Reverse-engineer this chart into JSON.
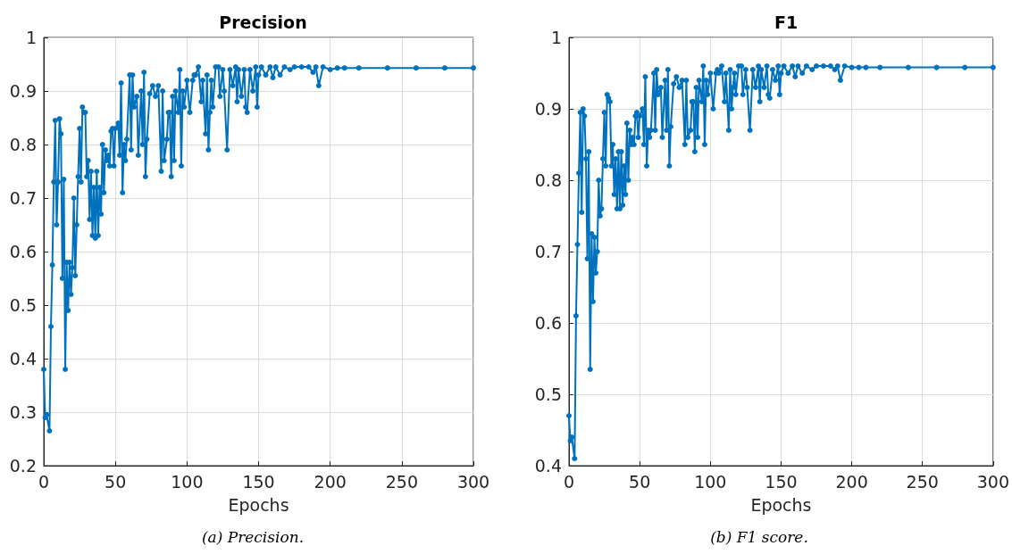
{
  "chart_data": [
    {
      "type": "line",
      "title": "Precision",
      "xlabel": "Epochs",
      "annotations": [
        "(a) Precision."
      ],
      "grid": true,
      "marker": "circle",
      "line_style": "solid",
      "xlim": [
        0,
        300
      ],
      "xticks": [
        0,
        50,
        100,
        150,
        200,
        250,
        300
      ],
      "ylim": [
        0.2,
        1
      ],
      "yticks": [
        0.2,
        0.3,
        0.4,
        0.5,
        0.6,
        0.7,
        0.8,
        0.9,
        1
      ],
      "series": [
        {
          "color": "#0072bd",
          "x": [
            0,
            1,
            2,
            4,
            5,
            6,
            7,
            8,
            9,
            10,
            11,
            12,
            13,
            14,
            15,
            16,
            17,
            18,
            19,
            20,
            21,
            22,
            23,
            24,
            25,
            26,
            27,
            28,
            29,
            30,
            31,
            32,
            33,
            34,
            35,
            36,
            37,
            38,
            39,
            40,
            41,
            42,
            43,
            44,
            45,
            46,
            47,
            48,
            49,
            50,
            52,
            53,
            54,
            55,
            56,
            57,
            58,
            60,
            61,
            62,
            63,
            65,
            66,
            68,
            69,
            70,
            71,
            72,
            74,
            76,
            78,
            80,
            82,
            83,
            84,
            86,
            87,
            88,
            89,
            90,
            91,
            92,
            94,
            95,
            96,
            97,
            98,
            100,
            102,
            104,
            105,
            106,
            108,
            110,
            111,
            113,
            114,
            115,
            116,
            117,
            118,
            120,
            122,
            123,
            125,
            126,
            128,
            130,
            132,
            134,
            135,
            136,
            138,
            140,
            141,
            142,
            144,
            146,
            148,
            149,
            150,
            152,
            155,
            158,
            160,
            162,
            165,
            168,
            172,
            175,
            180,
            185,
            188,
            190,
            192,
            195,
            200,
            205,
            210,
            220,
            240,
            260,
            280,
            300
          ],
          "values": [
            0.38,
            0.29,
            0.295,
            0.265,
            0.46,
            0.575,
            0.73,
            0.845,
            0.65,
            0.73,
            0.848,
            0.82,
            0.55,
            0.735,
            0.38,
            0.58,
            0.49,
            0.58,
            0.52,
            0.57,
            0.7,
            0.555,
            0.65,
            0.74,
            0.83,
            0.73,
            0.87,
            0.86,
            0.86,
            0.74,
            0.77,
            0.66,
            0.75,
            0.63,
            0.72,
            0.625,
            0.75,
            0.63,
            0.72,
            0.67,
            0.8,
            0.71,
            0.79,
            0.77,
            0.78,
            0.76,
            0.825,
            0.83,
            0.76,
            0.83,
            0.84,
            0.78,
            0.915,
            0.71,
            0.8,
            0.77,
            0.81,
            0.93,
            0.79,
            0.93,
            0.87,
            0.89,
            0.78,
            0.9,
            0.8,
            0.935,
            0.74,
            0.81,
            0.895,
            0.91,
            0.89,
            0.91,
            0.75,
            0.9,
            0.77,
            0.81,
            0.86,
            0.86,
            0.74,
            0.89,
            0.77,
            0.9,
            0.86,
            0.94,
            0.76,
            0.9,
            0.87,
            0.92,
            0.86,
            0.92,
            0.93,
            0.93,
            0.945,
            0.88,
            0.92,
            0.82,
            0.93,
            0.79,
            0.86,
            0.92,
            0.87,
            0.945,
            0.945,
            0.89,
            0.94,
            0.9,
            0.79,
            0.94,
            0.91,
            0.945,
            0.88,
            0.94,
            0.89,
            0.94,
            0.87,
            0.86,
            0.94,
            0.9,
            0.945,
            0.87,
            0.93,
            0.945,
            0.93,
            0.945,
            0.925,
            0.945,
            0.93,
            0.945,
            0.94,
            0.945,
            0.945,
            0.945,
            0.935,
            0.945,
            0.91,
            0.945,
            0.94,
            0.943,
            0.943,
            0.943,
            0.943,
            0.943,
            0.943,
            0.943
          ]
        }
      ]
    },
    {
      "type": "line",
      "title": "F1",
      "xlabel": "Epochs",
      "annotations": [
        "(b) F1 score."
      ],
      "grid": true,
      "marker": "circle",
      "line_style": "solid",
      "xlim": [
        0,
        300
      ],
      "xticks": [
        0,
        50,
        100,
        150,
        200,
        250,
        300
      ],
      "ylim": [
        0.4,
        1
      ],
      "yticks": [
        0.4,
        0.5,
        0.6,
        0.7,
        0.8,
        0.9,
        1
      ],
      "series": [
        {
          "color": "#0072bd",
          "x": [
            0,
            1,
            2,
            4,
            5,
            6,
            7,
            8,
            9,
            10,
            11,
            12,
            13,
            14,
            15,
            16,
            17,
            18,
            19,
            20,
            21,
            22,
            23,
            24,
            25,
            26,
            27,
            28,
            29,
            30,
            31,
            32,
            33,
            34,
            35,
            36,
            37,
            38,
            39,
            40,
            41,
            42,
            43,
            44,
            45,
            46,
            47,
            48,
            49,
            50,
            52,
            53,
            54,
            55,
            56,
            57,
            58,
            60,
            61,
            62,
            63,
            65,
            66,
            68,
            69,
            70,
            71,
            72,
            74,
            76,
            78,
            80,
            82,
            83,
            84,
            86,
            87,
            88,
            89,
            90,
            91,
            92,
            94,
            95,
            96,
            97,
            98,
            100,
            102,
            104,
            105,
            106,
            108,
            110,
            111,
            113,
            114,
            115,
            116,
            117,
            118,
            120,
            122,
            123,
            125,
            126,
            128,
            130,
            132,
            134,
            135,
            136,
            138,
            140,
            141,
            142,
            144,
            146,
            148,
            149,
            150,
            152,
            155,
            158,
            160,
            162,
            165,
            168,
            172,
            175,
            180,
            185,
            188,
            190,
            192,
            195,
            200,
            205,
            210,
            220,
            240,
            260,
            280,
            300
          ],
          "values": [
            0.47,
            0.435,
            0.44,
            0.41,
            0.61,
            0.71,
            0.81,
            0.895,
            0.755,
            0.9,
            0.89,
            0.83,
            0.69,
            0.84,
            0.535,
            0.725,
            0.63,
            0.72,
            0.67,
            0.7,
            0.8,
            0.75,
            0.76,
            0.83,
            0.895,
            0.82,
            0.92,
            0.915,
            0.91,
            0.82,
            0.85,
            0.78,
            0.83,
            0.76,
            0.84,
            0.76,
            0.84,
            0.765,
            0.82,
            0.78,
            0.88,
            0.8,
            0.87,
            0.85,
            0.86,
            0.85,
            0.89,
            0.895,
            0.86,
            0.89,
            0.9,
            0.85,
            0.945,
            0.82,
            0.87,
            0.86,
            0.87,
            0.95,
            0.87,
            0.955,
            0.92,
            0.93,
            0.86,
            0.94,
            0.87,
            0.955,
            0.82,
            0.875,
            0.935,
            0.945,
            0.93,
            0.94,
            0.85,
            0.94,
            0.86,
            0.87,
            0.91,
            0.91,
            0.84,
            0.93,
            0.86,
            0.94,
            0.91,
            0.96,
            0.85,
            0.94,
            0.92,
            0.95,
            0.9,
            0.95,
            0.955,
            0.95,
            0.96,
            0.91,
            0.95,
            0.87,
            0.955,
            0.9,
            0.93,
            0.95,
            0.92,
            0.96,
            0.96,
            0.92,
            0.955,
            0.93,
            0.87,
            0.955,
            0.93,
            0.96,
            0.91,
            0.955,
            0.93,
            0.96,
            0.92,
            0.915,
            0.955,
            0.94,
            0.96,
            0.92,
            0.95,
            0.96,
            0.95,
            0.96,
            0.945,
            0.96,
            0.95,
            0.96,
            0.955,
            0.96,
            0.96,
            0.96,
            0.955,
            0.96,
            0.94,
            0.96,
            0.958,
            0.958,
            0.958,
            0.958,
            0.958,
            0.958,
            0.958,
            0.958
          ]
        }
      ]
    }
  ]
}
